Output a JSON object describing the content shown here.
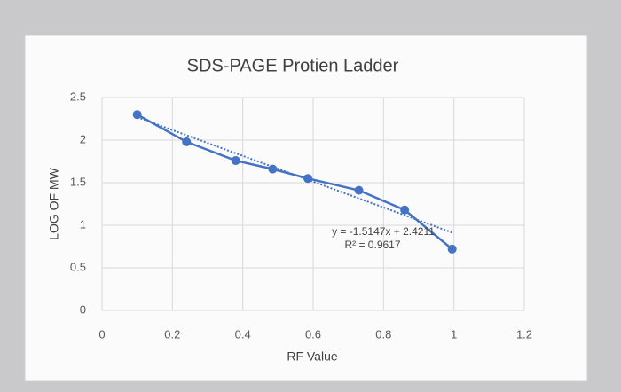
{
  "chart_data": {
    "type": "line",
    "title": "SDS-PAGE Protien Ladder",
    "x_label": "RF Value",
    "y_label": "LOG OF MW",
    "x": [
      0.1,
      0.24,
      0.38,
      0.485,
      0.585,
      0.73,
      0.86,
      0.995
    ],
    "series": [
      {
        "color": "#4472c4",
        "values": [
          2.3,
          1.98,
          1.76,
          1.66,
          1.55,
          1.41,
          1.18,
          0.72
        ]
      }
    ],
    "trendline": {
      "slope": -1.5147,
      "intercept": 2.4211,
      "label": "y = -1.5147x + 2.4211",
      "r2_label": "R² = 0.9617",
      "color": "#4472c4"
    },
    "xlim": [
      0,
      1.2
    ],
    "xticks": [
      0,
      0.2,
      0.4,
      0.6,
      0.8,
      1,
      1.2
    ],
    "ylim": [
      0,
      2.5
    ],
    "yticks": [
      0,
      0.5,
      1,
      1.5,
      2,
      2.5
    ],
    "grid": true
  }
}
